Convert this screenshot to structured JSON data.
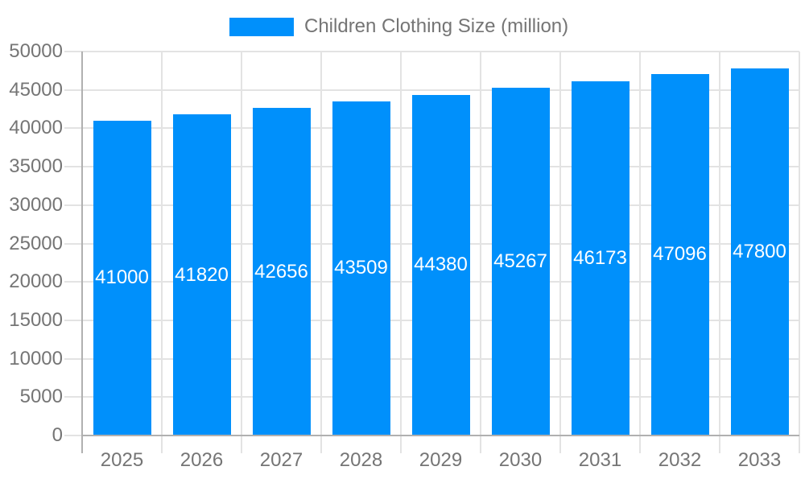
{
  "chart_data": {
    "type": "bar",
    "title": "Children Clothing Size (million)",
    "categories": [
      "2025",
      "2026",
      "2027",
      "2028",
      "2029",
      "2030",
      "2031",
      "2032",
      "2033"
    ],
    "values": [
      41000,
      41820,
      42656,
      43509,
      44380,
      45267,
      46173,
      47096,
      47800
    ],
    "series": [
      {
        "name": "Children Clothing Size (million)",
        "values": [
          41000,
          41820,
          42656,
          43509,
          44380,
          45267,
          46173,
          47096,
          47800
        ]
      }
    ],
    "xlabel": "",
    "ylabel": "",
    "ylim": [
      0,
      50000
    ],
    "ytick_step": 5000,
    "yticks": [
      0,
      5000,
      10000,
      15000,
      20000,
      25000,
      30000,
      35000,
      40000,
      45000,
      50000
    ],
    "grid": true,
    "legend_position": "top-center",
    "data_labels": "inside-center",
    "colors": {
      "bar": "#0090FB",
      "grid": "#E3E3E3",
      "axis_line": "#B0B0B0",
      "axis_text": "#757575",
      "data_label": "#FFFFFF",
      "background": "#FFFFFF"
    }
  }
}
